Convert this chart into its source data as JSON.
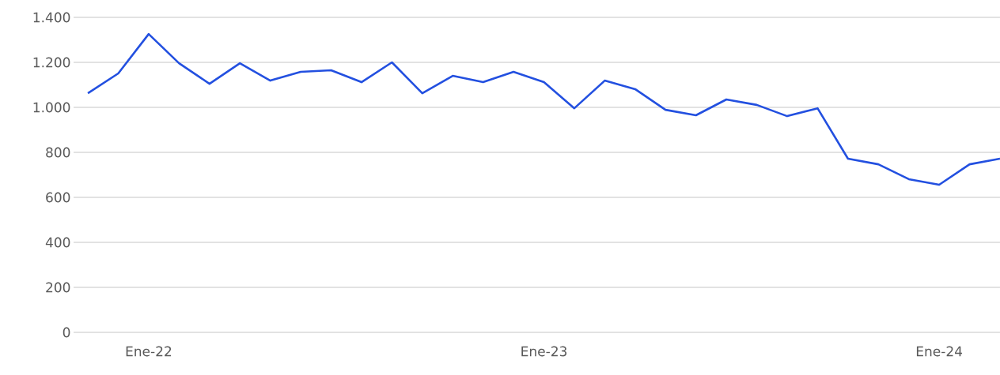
{
  "chart_data": {
    "type": "line",
    "categories": [
      null,
      null,
      "Ene-22",
      null,
      null,
      null,
      null,
      null,
      null,
      null,
      null,
      null,
      null,
      null,
      null,
      "Ene-23",
      null,
      null,
      null,
      null,
      null,
      null,
      null,
      null,
      null,
      null,
      null,
      null,
      "Ene-24",
      null,
      null
    ],
    "series": [
      {
        "color": "#2350e0",
        "values": [
          1063,
          1151,
          1326,
          1196,
          1105,
          1196,
          1119,
          1158,
          1165,
          1112,
          1200,
          1063,
          1140,
          1112,
          1158,
          1112,
          996,
          1119,
          1081,
          989,
          965,
          1035,
          1011,
          961,
          996,
          772,
          747,
          681,
          656,
          747,
          772
        ]
      }
    ],
    "ylim": [
      0,
      1400
    ],
    "yticks": [
      0,
      200,
      400,
      600,
      800,
      {
        "value": 1000,
        "label": "1.000"
      },
      {
        "value": 1200,
        "label": "1.200"
      },
      {
        "value": 1400,
        "label": "1.400"
      }
    ],
    "grid": "y",
    "marker": "none",
    "line_style": "solid"
  }
}
